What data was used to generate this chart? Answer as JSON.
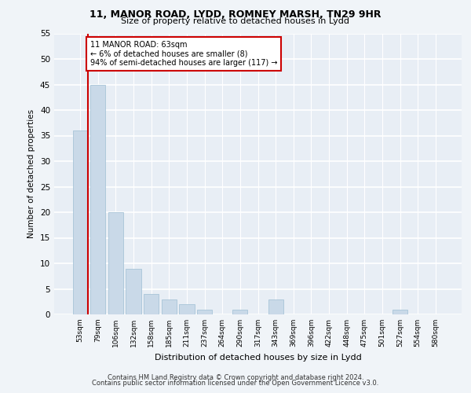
{
  "title1": "11, MANOR ROAD, LYDD, ROMNEY MARSH, TN29 9HR",
  "title2": "Size of property relative to detached houses in Lydd",
  "xlabel": "Distribution of detached houses by size in Lydd",
  "ylabel": "Number of detached properties",
  "categories": [
    "53sqm",
    "79sqm",
    "106sqm",
    "132sqm",
    "158sqm",
    "185sqm",
    "211sqm",
    "237sqm",
    "264sqm",
    "290sqm",
    "317sqm",
    "343sqm",
    "369sqm",
    "396sqm",
    "422sqm",
    "448sqm",
    "475sqm",
    "501sqm",
    "527sqm",
    "554sqm",
    "580sqm"
  ],
  "values": [
    36,
    45,
    20,
    9,
    4,
    3,
    2,
    1,
    0,
    1,
    0,
    3,
    0,
    0,
    0,
    0,
    0,
    0,
    1,
    0,
    0
  ],
  "bar_color": "#c9d9e8",
  "bar_edge_color": "#a8c4d8",
  "red_line_x": 0.42,
  "annotation_text": "11 MANOR ROAD: 63sqm\n← 6% of detached houses are smaller (8)\n94% of semi-detached houses are larger (117) →",
  "annotation_box_color": "#ffffff",
  "annotation_box_edge": "#cc0000",
  "ylim": [
    0,
    55
  ],
  "yticks": [
    0,
    5,
    10,
    15,
    20,
    25,
    30,
    35,
    40,
    45,
    50,
    55
  ],
  "footer1": "Contains HM Land Registry data © Crown copyright and database right 2024.",
  "footer2": "Contains public sector information licensed under the Open Government Licence v3.0.",
  "fig_bg": "#f0f4f8",
  "plot_bg": "#e8eef5"
}
